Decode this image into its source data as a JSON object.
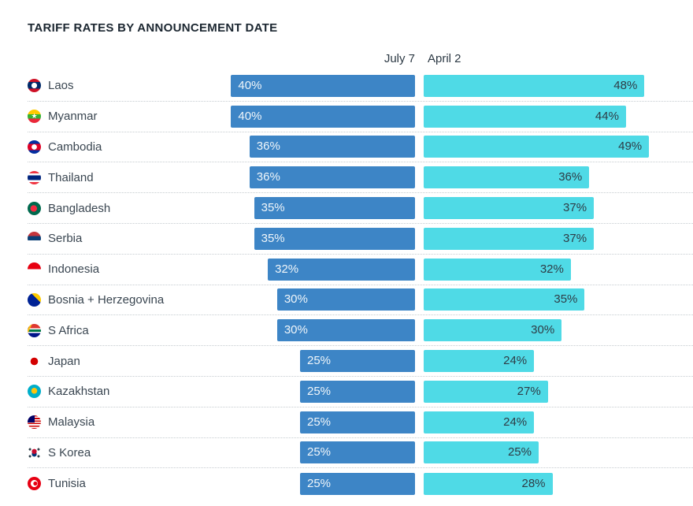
{
  "columns": {
    "left_label": "July 7",
    "right_label": "April 2"
  },
  "colors": {
    "july7_bar": "#3d85c6",
    "april2_bar": "#4fdae6",
    "title_text": "#1b2630",
    "country_text": "#3a4651",
    "value_text_on_blue": "#f0f6fa",
    "value_text_on_cyan": "#2e3c46",
    "row_separator": "#c6ccd0",
    "background": "#ffffff"
  },
  "chart_data": {
    "type": "bar",
    "orientation": "horizontal",
    "layout": "two-column diverging bars, blue bars right-anchored, cyan bars left-anchored",
    "title": "TARIFF RATES BY ANNOUNCEMENT DATE",
    "series_names": [
      "July 7",
      "April 2"
    ],
    "unit": "%",
    "value_range": [
      0,
      49
    ],
    "legend_position": "column headers above bars",
    "grid": "dotted horizontal separators between rows",
    "rows": [
      {
        "country": "Laos",
        "july7": 40,
        "july7_label": "40%",
        "april2": 48,
        "april2_label": "48%",
        "flag_icon": "laos-flag-icon",
        "flag_css": "radial-gradient(circle at 50% 50%, #ffffff 0 3.4px, rgba(255,255,255,0) 3.7px), linear-gradient(180deg, #ce1126 0 25%, #002868 25% 75%, #ce1126 75%)"
      },
      {
        "country": "Myanmar",
        "july7": 40,
        "july7_label": "40%",
        "april2": 44,
        "april2_label": "44%",
        "flag_icon": "myanmar-flag-icon",
        "flag_css": "linear-gradient(180deg, #fecb00 0 34%, #34b233 34% 67%, #ea2839 67%)",
        "flag_glyph": "★",
        "flag_glyph_color": "#ffffff"
      },
      {
        "country": "Cambodia",
        "july7": 36,
        "july7_label": "36%",
        "april2": 49,
        "april2_label": "49%",
        "flag_icon": "cambodia-flag-icon",
        "flag_css": "radial-gradient(circle at 50% 50%, #ffffff 0 3.2px, rgba(255,255,255,0) 3.5px), linear-gradient(180deg, #032ea1 0 26%, #e00025 26% 74%, #032ea1 74%)"
      },
      {
        "country": "Thailand",
        "july7": 36,
        "july7_label": "36%",
        "april2": 36,
        "april2_label": "36%",
        "flag_icon": "thailand-flag-icon",
        "flag_css": "linear-gradient(180deg, #ef3340 0 17%, #ffffff 17% 33%, #00247d 33% 67%, #ffffff 67% 83%, #ef3340 83%)"
      },
      {
        "country": "Bangladesh",
        "july7": 35,
        "july7_label": "35%",
        "april2": 37,
        "april2_label": "37%",
        "flag_icon": "bangladesh-flag-icon",
        "flag_css": "radial-gradient(circle at 46% 50%, #f42a41 0 4px, rgba(0,0,0,0) 4.3px), #006a4e"
      },
      {
        "country": "Serbia",
        "july7": 35,
        "july7_label": "35%",
        "april2": 37,
        "april2_label": "37%",
        "flag_icon": "serbia-flag-icon",
        "flag_css": "linear-gradient(180deg, #c6363c 0 33%, #0c4076 33% 66%, #ffffff 66%)"
      },
      {
        "country": "Indonesia",
        "july7": 32,
        "july7_label": "32%",
        "april2": 32,
        "april2_label": "32%",
        "flag_icon": "indonesia-flag-icon",
        "flag_css": "linear-gradient(180deg, #e70011 0 50%, #ffffff 50%)"
      },
      {
        "country": "Bosnia + Herzegovina",
        "july7": 30,
        "july7_label": "30%",
        "april2": 35,
        "april2_label": "35%",
        "flag_icon": "bosnia-herzegovina-flag-icon",
        "flag_css": "linear-gradient(225deg, #fecb00 0 36%, rgba(0,0,0,0) 36.5%), #002395"
      },
      {
        "country": "S Africa",
        "july7": 30,
        "july7_label": "30%",
        "april2": 30,
        "april2_label": "30%",
        "flag_icon": "south-africa-flag-icon",
        "flag_css": "linear-gradient(115deg, #000000 0 3px, #ffb915 3px 5px, rgba(0,0,0,0) 5.5px), linear-gradient(180deg, #de3831 0 31%, #ffffff 31% 40%, #007847 40% 60%, #ffffff 60% 69%, #001489 69%)"
      },
      {
        "country": "Japan",
        "july7": 25,
        "july7_label": "25%",
        "april2": 24,
        "april2_label": "24%",
        "flag_icon": "japan-flag-icon",
        "flag_css": "radial-gradient(circle at 50% 50%, #d30000 0 4.6px, rgba(255,255,255,0) 4.9px), #ffffff"
      },
      {
        "country": "Kazakhstan",
        "july7": 25,
        "july7_label": "25%",
        "april2": 27,
        "april2_label": "27%",
        "flag_icon": "kazakhstan-flag-icon",
        "flag_css": "radial-gradient(circle at 50% 46%, #fec50c 0 3.6px, rgba(0,0,0,0) 3.9px), #00afca"
      },
      {
        "country": "Malaysia",
        "july7": 25,
        "july7_label": "25%",
        "april2": 24,
        "april2_label": "24%",
        "flag_icon": "malaysia-flag-icon",
        "flag_css": "linear-gradient(#010066, #010066) left top / 9px 9px no-repeat, repeating-linear-gradient(180deg, #cc0001 0 1.6px, #ffffff 1.6px 3.2px)"
      },
      {
        "country": "S Korea",
        "july7": 25,
        "july7_label": "25%",
        "april2": 25,
        "april2_label": "25%",
        "flag_icon": "south-korea-flag-icon",
        "flag_css": "radial-gradient(circle at 18% 24%, #30404a 0 1.4px, rgba(0,0,0,0) 1.7px), radial-gradient(circle at 82% 24%, #30404a 0 1.4px, rgba(0,0,0,0) 1.7px), radial-gradient(circle at 18% 76%, #30404a 0 1.4px, rgba(0,0,0,0) 1.7px), radial-gradient(circle at 82% 76%, #30404a 0 1.4px, rgba(0,0,0,0) 1.7px), radial-gradient(circle at 50% 40%, #c60c30 0 3px, rgba(0,0,0,0) 3.3px), radial-gradient(circle at 50% 60%, #003478 0 3px, rgba(0,0,0,0) 3.3px), #ffffff"
      },
      {
        "country": "Tunisia",
        "july7": 25,
        "july7_label": "25%",
        "april2": 28,
        "april2_label": "28%",
        "flag_icon": "tunisia-flag-icon",
        "flag_css": "radial-gradient(circle at 58% 50%, #e70013 0 2.4px, rgba(0,0,0,0) 2.7px), radial-gradient(circle at 50% 50%, #ffffff 0 4.3px, rgba(0,0,0,0) 4.6px), #e70013"
      }
    ]
  }
}
